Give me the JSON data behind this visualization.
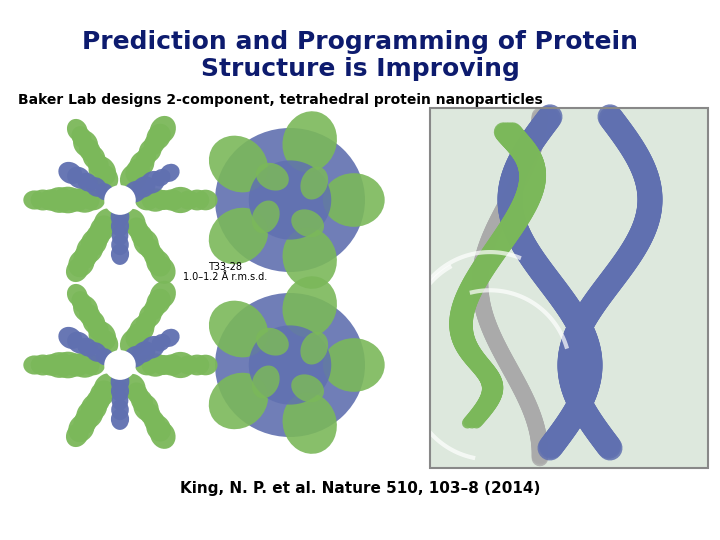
{
  "title_line1": "Prediction and Programming of Protein",
  "title_line2": "Structure is Improving",
  "subtitle": "Baker Lab designs 2-component, tetrahedral protein nanoparticles",
  "citation": "King, N. P. et al. Nature 510, 103–8 (2014)",
  "label_line1": "T33-28",
  "label_line2": "1.0–1.2 Å r.m.s.d.",
  "title_color": "#0d1b6e",
  "subtitle_color": "#000000",
  "citation_color": "#000000",
  "background_color": "#ffffff",
  "title_fontsize": 18,
  "subtitle_fontsize": 10,
  "citation_fontsize": 11,
  "label_fontsize": 7,
  "green_color": "#7bb85a",
  "blue_color": "#6070b0",
  "right_panel_bg": "#ccd8cc"
}
